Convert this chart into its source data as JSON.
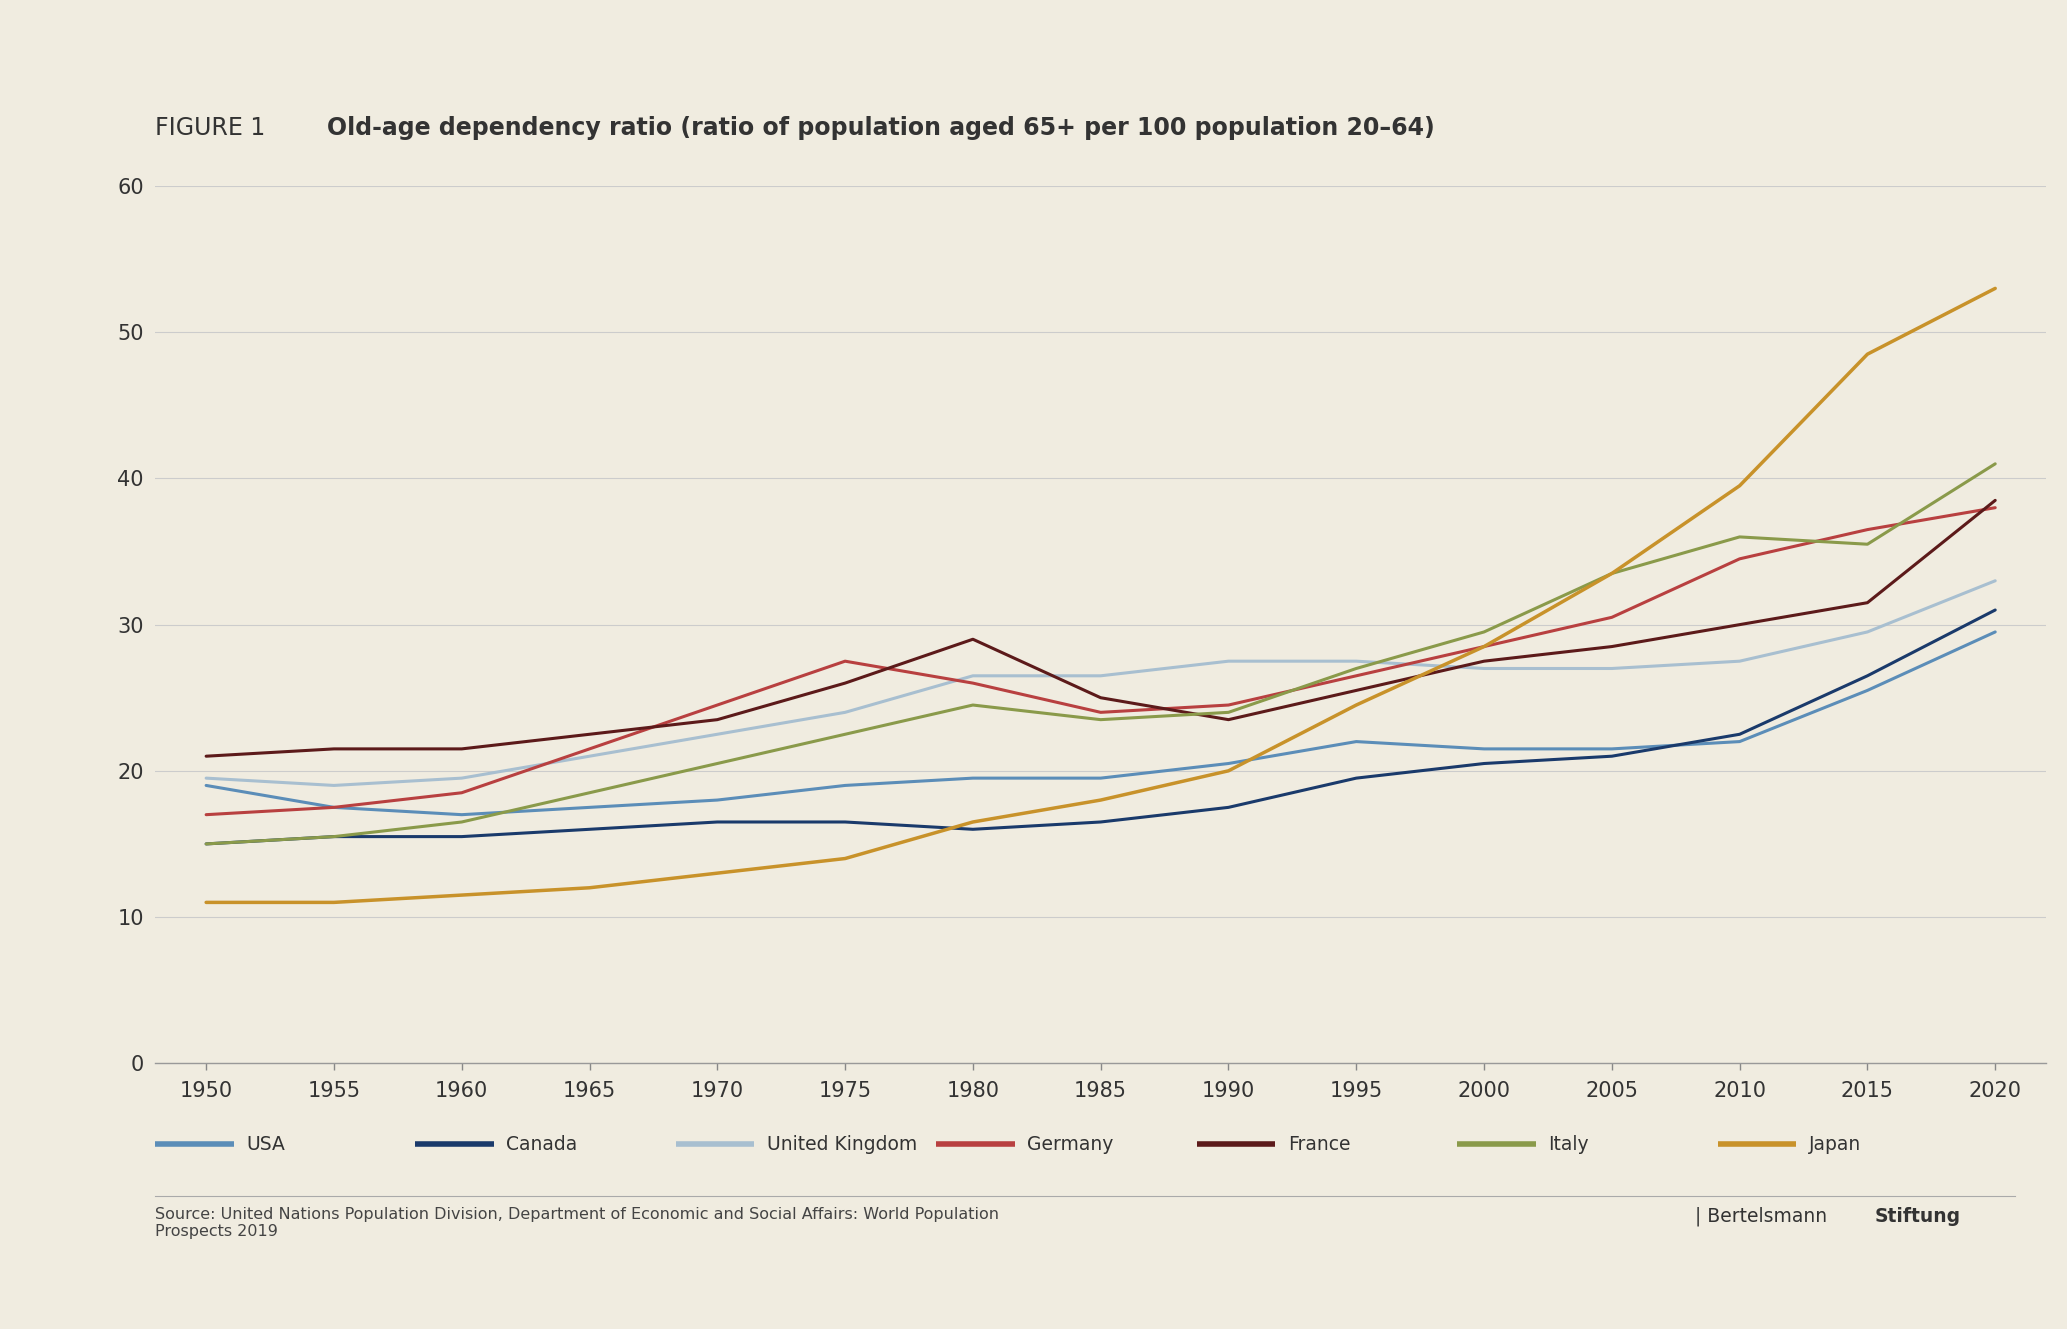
{
  "title_prefix": "FIGURE 1",
  "title_bold": "Old-age dependency ratio (ratio of population aged 65+ per 100 population 20–64)",
  "background_color": "#f0ece0",
  "plot_bg_color": "#f0ece0",
  "source_text": "Source: United Nations Population Division, Department of Economic and Social Affairs: World Population\nProspects 2019",
  "ylim": [
    0,
    60
  ],
  "yticks": [
    0,
    10,
    20,
    30,
    40,
    50,
    60
  ],
  "years": [
    1950,
    1955,
    1960,
    1965,
    1970,
    1975,
    1980,
    1985,
    1990,
    1995,
    2000,
    2005,
    2010,
    2015,
    2020
  ],
  "series": {
    "USA": {
      "color": "#5b8db8",
      "linewidth": 2.2,
      "values": [
        19.0,
        17.5,
        17.0,
        17.5,
        18.0,
        19.0,
        19.5,
        19.5,
        20.5,
        22.0,
        21.5,
        21.5,
        22.0,
        25.5,
        29.5
      ]
    },
    "Canada": {
      "color": "#1a3a6b",
      "linewidth": 2.2,
      "values": [
        15.0,
        15.5,
        15.5,
        16.0,
        16.5,
        16.5,
        16.0,
        16.5,
        17.5,
        19.5,
        20.5,
        21.0,
        22.5,
        26.5,
        31.0
      ]
    },
    "United Kingdom": {
      "color": "#a8bfd0",
      "linewidth": 2.2,
      "values": [
        19.5,
        19.0,
        19.5,
        21.0,
        22.5,
        24.0,
        26.5,
        26.5,
        27.5,
        27.5,
        27.0,
        27.0,
        27.5,
        29.5,
        33.0
      ]
    },
    "Germany": {
      "color": "#b84040",
      "linewidth": 2.2,
      "values": [
        17.0,
        17.5,
        18.5,
        21.5,
        24.5,
        27.5,
        26.0,
        24.0,
        24.5,
        26.5,
        28.5,
        30.5,
        34.5,
        36.5,
        38.0
      ]
    },
    "France": {
      "color": "#5c1a1a",
      "linewidth": 2.2,
      "values": [
        21.0,
        21.5,
        21.5,
        22.5,
        23.5,
        26.0,
        29.0,
        25.0,
        23.5,
        25.5,
        27.5,
        28.5,
        30.0,
        31.5,
        38.5
      ]
    },
    "Italy": {
      "color": "#8a9a4a",
      "linewidth": 2.2,
      "values": [
        15.0,
        15.5,
        16.5,
        18.5,
        20.5,
        22.5,
        24.5,
        23.5,
        24.0,
        27.0,
        29.5,
        33.5,
        36.0,
        35.5,
        41.0
      ]
    },
    "Japan": {
      "color": "#c8922a",
      "linewidth": 2.5,
      "values": [
        11.0,
        11.0,
        11.5,
        12.0,
        13.0,
        14.0,
        16.5,
        18.0,
        20.0,
        24.5,
        28.5,
        33.5,
        39.5,
        48.5,
        53.0
      ]
    }
  },
  "legend_order": [
    "USA",
    "Canada",
    "United Kingdom",
    "Germany",
    "France",
    "Italy",
    "Japan"
  ]
}
